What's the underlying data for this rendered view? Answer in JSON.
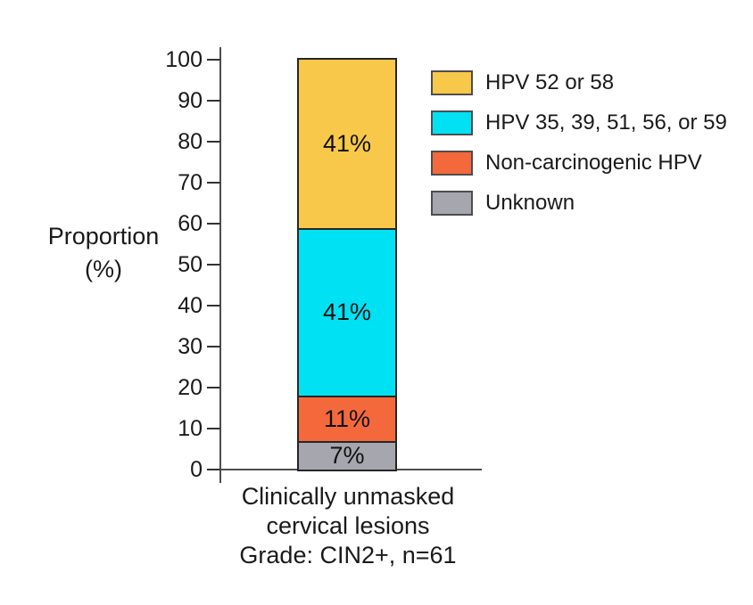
{
  "chart_data": {
    "type": "bar",
    "stacked": true,
    "ylabel_line1": "Proportion",
    "ylabel_line2": "(%)",
    "ylim": [
      0,
      100
    ],
    "ytick_step": 10,
    "grid": false,
    "legend_position": "right",
    "category_label_lines": [
      "Clinically unmasked",
      "cervical lesions",
      "Grade: CIN2+, n=61"
    ],
    "segments": [
      {
        "name": "HPV 52 or 58",
        "value": 41,
        "label": "41%",
        "color": "#f7c84a"
      },
      {
        "name": "HPV 35, 39, 51, 56, or 59",
        "value": 41,
        "label": "41%",
        "color": "#00e2f4"
      },
      {
        "name": "Non-carcinogenic HPV",
        "value": 11,
        "label": "11%",
        "color": "#f4693b"
      },
      {
        "name": "Unknown",
        "value": 7,
        "label": "7%",
        "color": "#a6a6ae"
      }
    ]
  }
}
